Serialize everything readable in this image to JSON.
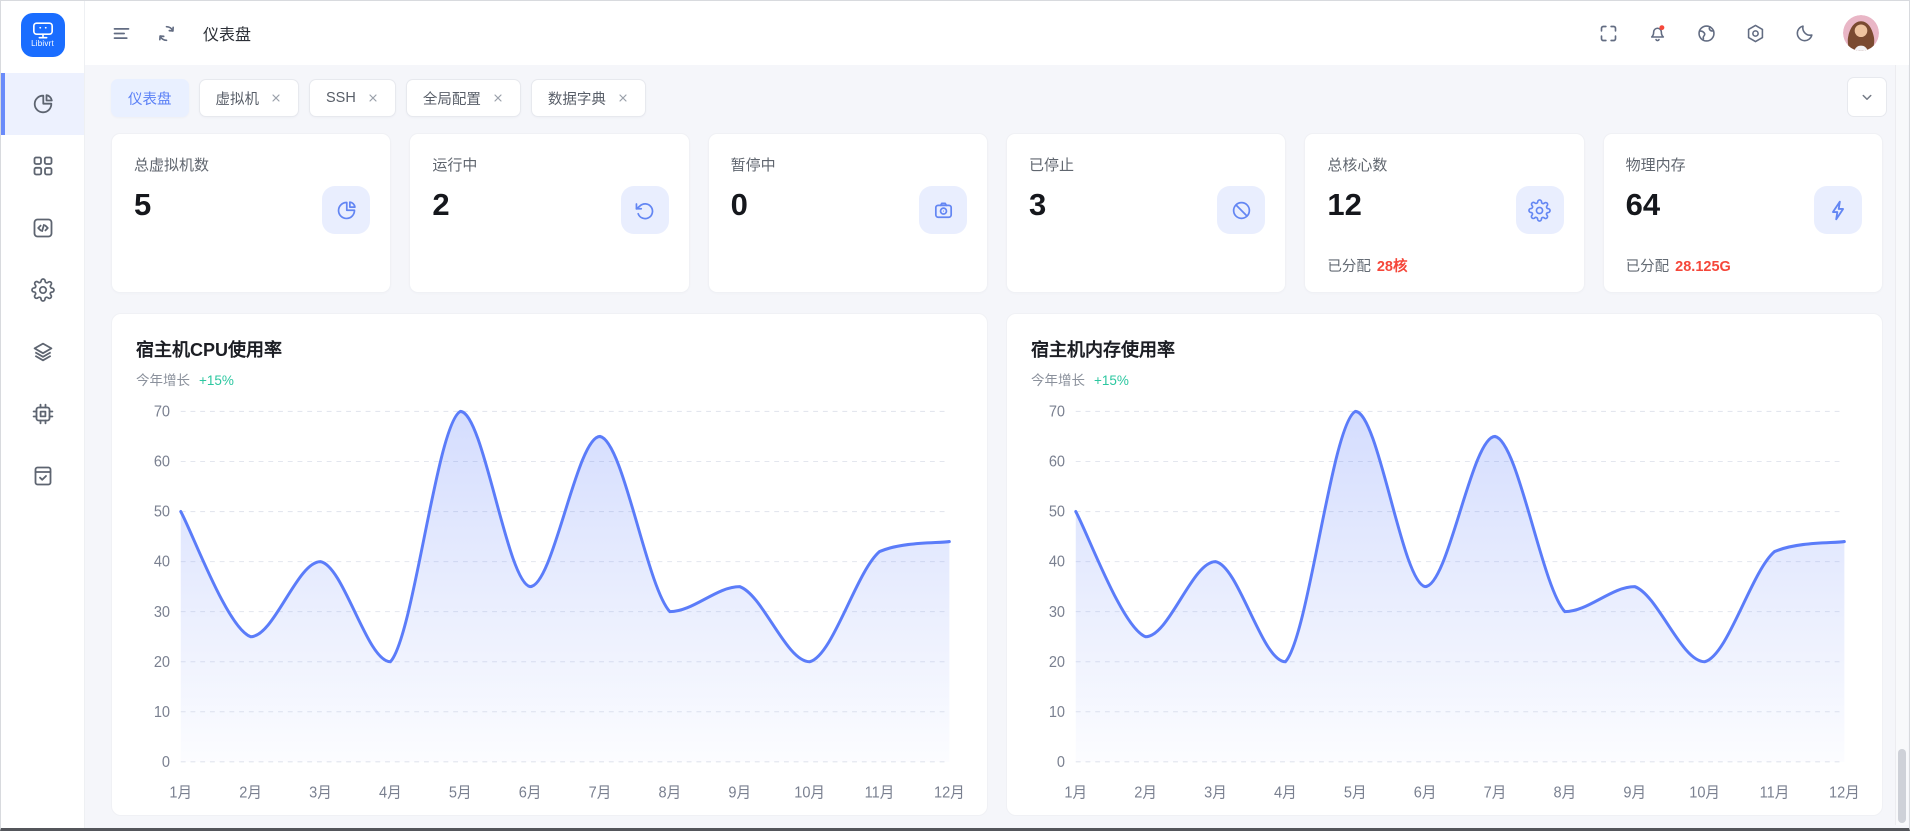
{
  "app": {
    "logo_text": "Libivrt"
  },
  "header": {
    "title": "仪表盘",
    "left_icons": [
      "menu",
      "refresh"
    ],
    "right_icons": [
      "fullscreen",
      "bell-with-badge",
      "globe",
      "settings",
      "moon",
      "avatar"
    ]
  },
  "sidebar": {
    "items": [
      {
        "icon": "pie-chart",
        "active": true
      },
      {
        "icon": "apps-grid",
        "active": false
      },
      {
        "icon": "code-square",
        "active": false
      },
      {
        "icon": "gear",
        "active": false
      },
      {
        "icon": "layers",
        "active": false
      },
      {
        "icon": "cpu-chip",
        "active": false
      },
      {
        "icon": "task-check",
        "active": false
      }
    ]
  },
  "tabs": {
    "items": [
      {
        "label": "仪表盘",
        "active": true,
        "closable": false
      },
      {
        "label": "虚拟机",
        "active": false,
        "closable": true
      },
      {
        "label": "SSH",
        "active": false,
        "closable": true
      },
      {
        "label": "全局配置",
        "active": false,
        "closable": true
      },
      {
        "label": "数据字典",
        "active": false,
        "closable": true
      }
    ]
  },
  "stats": [
    {
      "label": "总虚拟机数",
      "value": "5",
      "icon": "pie-chart"
    },
    {
      "label": "运行中",
      "value": "2",
      "icon": "rotate-ccw"
    },
    {
      "label": "暂停中",
      "value": "0",
      "icon": "camera"
    },
    {
      "label": "已停止",
      "value": "3",
      "icon": "ban"
    },
    {
      "label": "总核心数",
      "value": "12",
      "icon": "gear",
      "sub_label": "已分配",
      "sub_value": "28核"
    },
    {
      "label": "物理内存",
      "value": "64",
      "icon": "bolt",
      "sub_label": "已分配",
      "sub_value": "28.125G"
    }
  ],
  "charts": [
    {
      "title": "宿主机CPU使用率",
      "growth_label": "今年增长",
      "growth_value": "+15%",
      "chart_data": {
        "type": "line",
        "x": [
          "1月",
          "2月",
          "3月",
          "4月",
          "5月",
          "6月",
          "7月",
          "8月",
          "9月",
          "10月",
          "11月",
          "12月"
        ],
        "series": [
          {
            "name": "宿主机CPU使用率",
            "values": [
              50,
              25,
              40,
              20,
              70,
              35,
              65,
              30,
              35,
              20,
              42,
              44
            ]
          }
        ],
        "ylim": [
          0,
          70
        ],
        "yticks": [
          0,
          10,
          20,
          30,
          40,
          50,
          60,
          70
        ],
        "grid": "dashed",
        "smooth": true,
        "area": true,
        "legend": "none"
      }
    },
    {
      "title": "宿主机内存使用率",
      "growth_label": "今年增长",
      "growth_value": "+15%",
      "chart_data": {
        "type": "line",
        "x": [
          "1月",
          "2月",
          "3月",
          "4月",
          "5月",
          "6月",
          "7月",
          "8月",
          "9月",
          "10月",
          "11月",
          "12月"
        ],
        "series": [
          {
            "name": "宿主机内存使用率",
            "values": [
              50,
              25,
              40,
              20,
              70,
              35,
              65,
              30,
              35,
              20,
              42,
              44
            ]
          }
        ],
        "ylim": [
          0,
          70
        ],
        "yticks": [
          0,
          10,
          20,
          30,
          40,
          50,
          60,
          70
        ],
        "grid": "dashed",
        "smooth": true,
        "area": true,
        "legend": "none"
      }
    }
  ],
  "theme": {
    "accent": "#5b7cf9",
    "logo_blue": "#1a6dff",
    "red": "#f5473a",
    "teal": "#2cc7a0",
    "chart_line": "#5b7cf9",
    "badge_red": "#f5483b"
  }
}
